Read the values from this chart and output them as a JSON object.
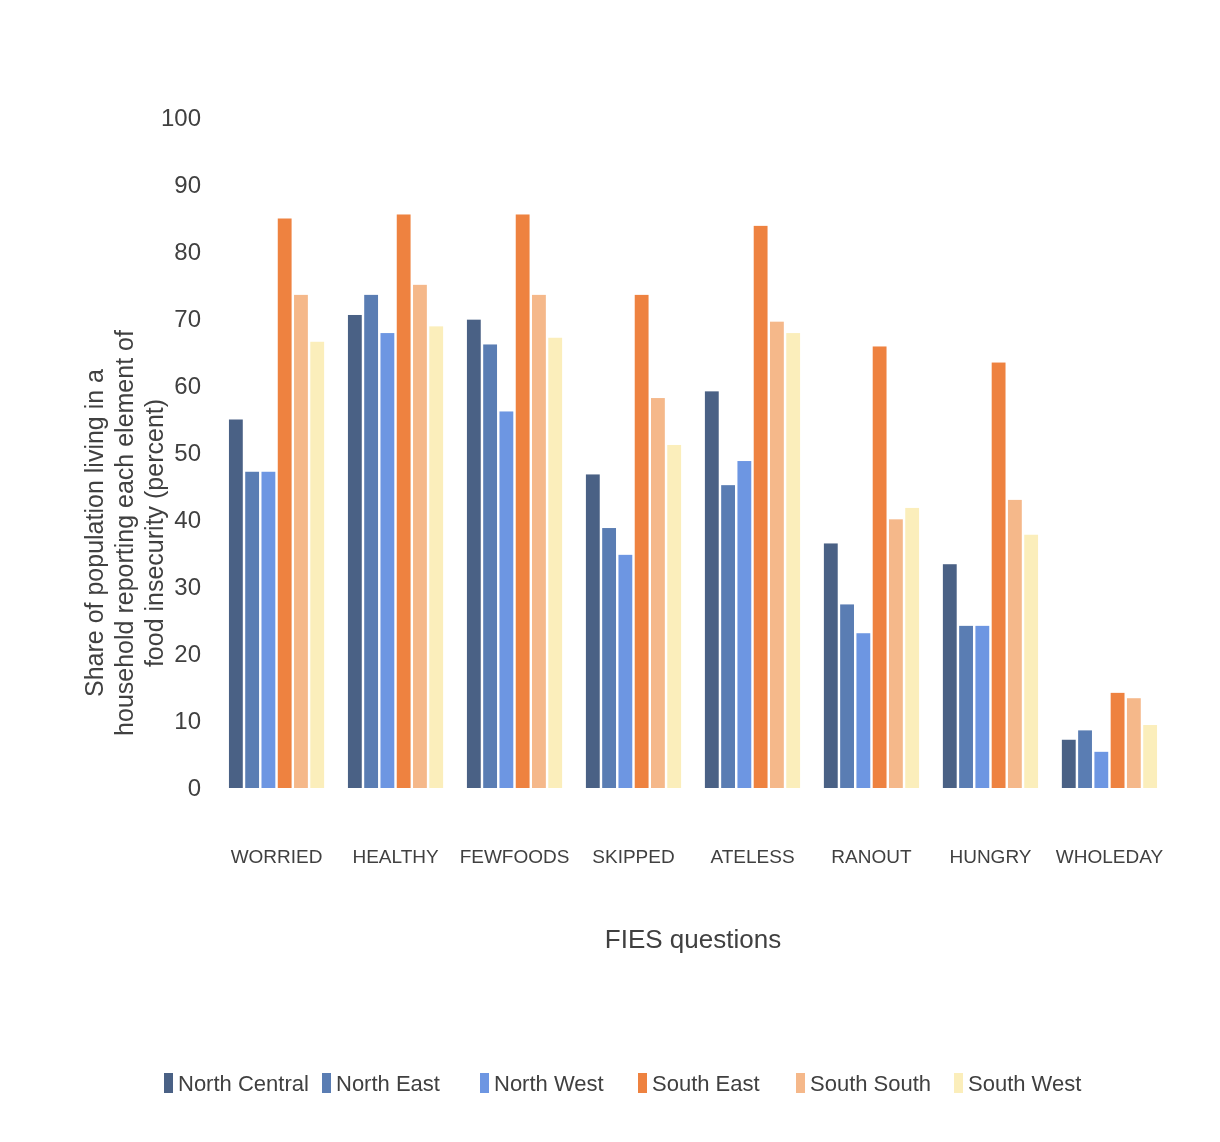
{
  "chart_data": {
    "type": "bar",
    "xlabel": "FIES questions",
    "ylabel": "Share of population living in a\nhousehold reporting each element of\nfood insecurity (percent)",
    "categories": [
      "WORRIED",
      "HEALTHY",
      "FEWFOODS",
      "SKIPPED",
      "ATELESS",
      "RANOUT",
      "HUNGRY",
      "WHOLEDAY"
    ],
    "series": [
      {
        "name": "North Central",
        "color": "#4a6185",
        "values": [
          55,
          70.6,
          69.9,
          46.8,
          59.2,
          36.5,
          33.4,
          7.2
        ]
      },
      {
        "name": "North East",
        "color": "#5a7db3",
        "values": [
          47.2,
          73.6,
          66.2,
          38.8,
          45.2,
          27.4,
          24.2,
          8.6
        ]
      },
      {
        "name": "North West",
        "color": "#6d96e2",
        "values": [
          47.2,
          67.9,
          56.2,
          34.8,
          48.8,
          23.1,
          24.2,
          5.4
        ]
      },
      {
        "name": "South East",
        "color": "#ee8240",
        "values": [
          85,
          85.6,
          85.6,
          73.6,
          83.9,
          65.9,
          63.5,
          14.2
        ]
      },
      {
        "name": "South South",
        "color": "#f5b88a",
        "values": [
          73.6,
          75.1,
          73.6,
          58.2,
          69.6,
          40.1,
          43,
          13.4
        ]
      },
      {
        "name": "South West",
        "color": "#fbeebb",
        "values": [
          66.6,
          68.9,
          67.2,
          51.2,
          67.9,
          41.8,
          37.8,
          9.4
        ]
      }
    ],
    "ylim": [
      0,
      100
    ],
    "yticks": [
      0,
      10,
      20,
      30,
      40,
      50,
      60,
      70,
      80,
      90,
      100
    ],
    "grid": false,
    "legend": "bottom"
  }
}
